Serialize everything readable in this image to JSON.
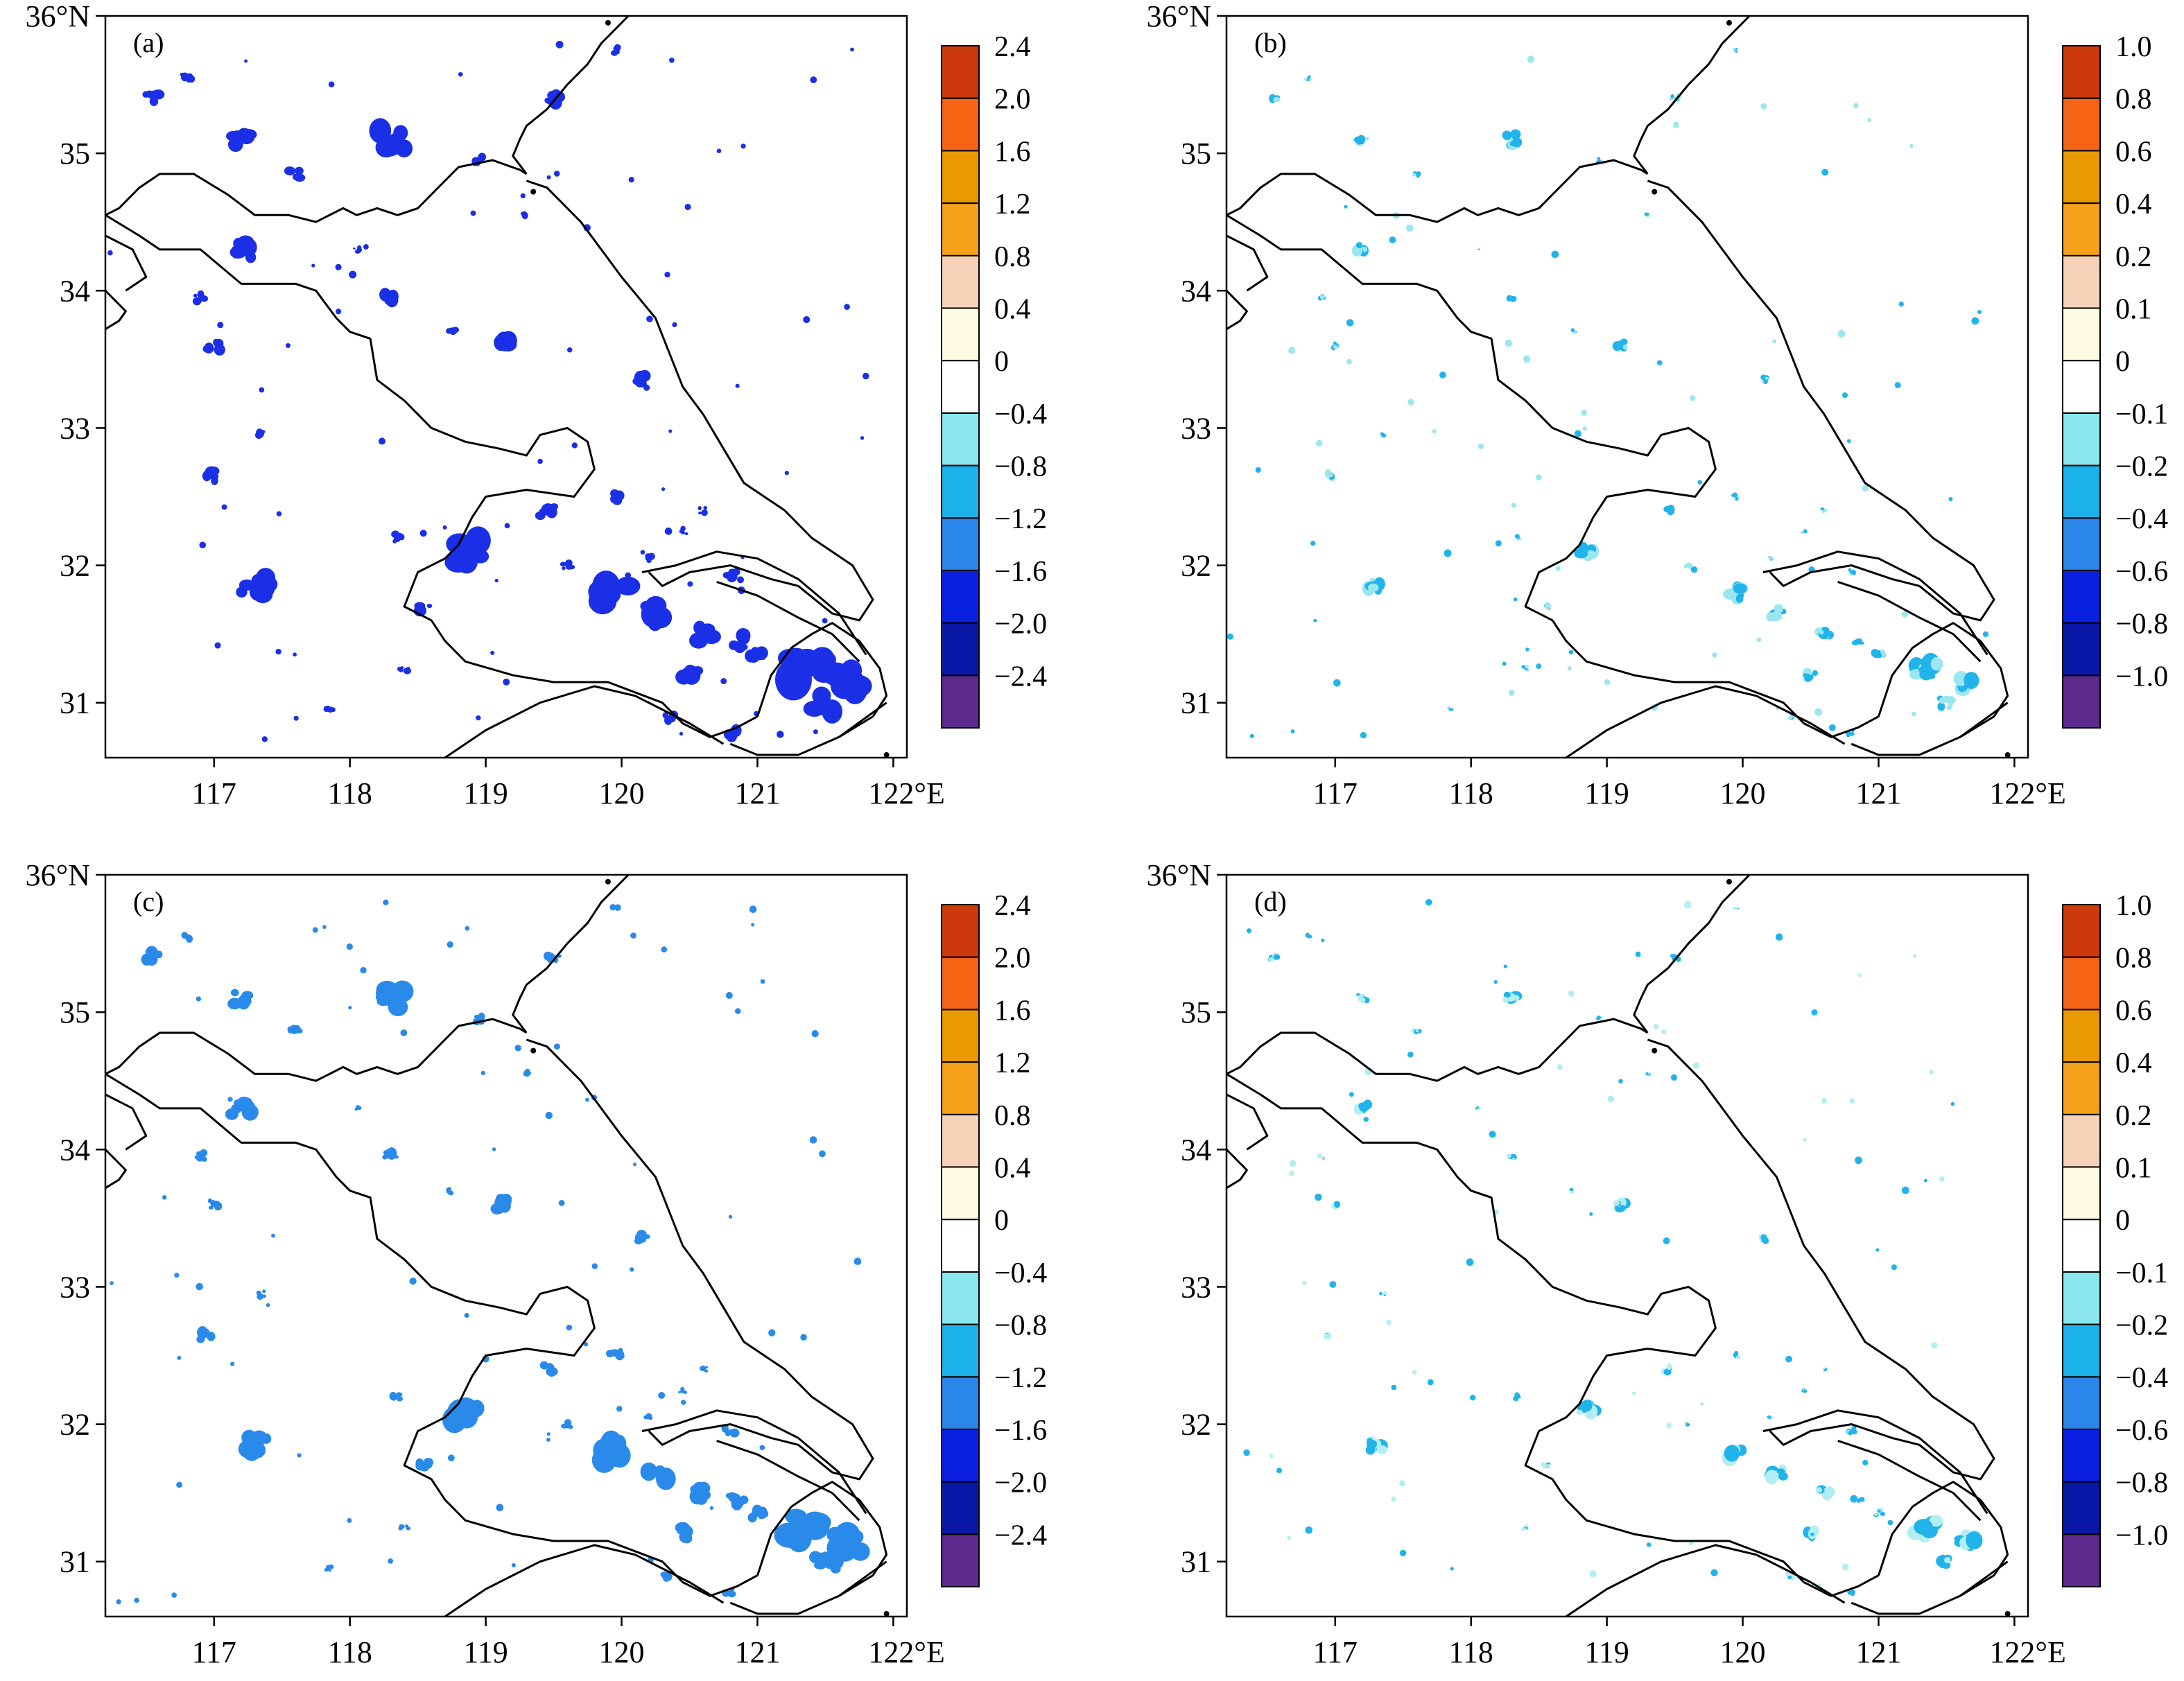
{
  "map_data": {
    "lat_ticks": [
      "36°N",
      "35",
      "34",
      "33",
      "32",
      "31"
    ],
    "lon_ticks": [
      "117",
      "118",
      "119",
      "120",
      "121",
      "122°E"
    ],
    "lat_range": [
      30.6,
      36.0
    ],
    "lon_range": [
      116.2,
      122.1
    ],
    "boundary_color": "#000000",
    "panels": [
      {
        "label": "(a)",
        "colorbar": {
          "colors": [
            "#5b2a8c",
            "#0a18a8",
            "#0a20e0",
            "#2a86e8",
            "#1ab2e8",
            "#8ae6ef",
            "#ffffff",
            "#fffbe2",
            "#f6d3b8",
            "#f5a21a",
            "#e89a00",
            "#f56315",
            "#cc3a0c"
          ],
          "labels": [
            "-2.4",
            "-2.0",
            "-1.6",
            "-1.2",
            "-0.8",
            "-0.4",
            "0",
            "0.4",
            "0.8",
            "1.2",
            "1.6",
            "2.0",
            "2.4"
          ]
        },
        "blob_color": "#1a2fe6",
        "blob_color_light": "#1a2fe6",
        "intensity": "strong"
      },
      {
        "label": "(b)",
        "colorbar": {
          "colors": [
            "#5b2a8c",
            "#0a18a8",
            "#0a20e0",
            "#2a86e8",
            "#1ab2e8",
            "#8ae6ef",
            "#ffffff",
            "#fffbe2",
            "#f6d3b8",
            "#f5a21a",
            "#e89a00",
            "#f56315",
            "#cc3a0c"
          ],
          "labels": [
            "-1.0",
            "-0.8",
            "-0.6",
            "-0.4",
            "-0.2",
            "-0.1",
            "0",
            "0.1",
            "0.2",
            "0.4",
            "0.6",
            "0.8",
            "1.0"
          ]
        },
        "blob_color": "#21b4ea",
        "blob_color_light": "#9be7f0",
        "intensity": "weak"
      },
      {
        "label": "(c)",
        "colorbar": {
          "colors": [
            "#5b2a8c",
            "#0a18a8",
            "#0a20e0",
            "#2a86e8",
            "#1ab2e8",
            "#8ae6ef",
            "#ffffff",
            "#fffbe2",
            "#f6d3b8",
            "#f5a21a",
            "#e89a00",
            "#f56315",
            "#cc3a0c"
          ],
          "labels": [
            "-2.4",
            "-2.0",
            "-1.6",
            "-1.2",
            "-0.8",
            "-0.4",
            "0",
            "0.4",
            "0.8",
            "1.2",
            "1.6",
            "2.0",
            "2.4"
          ]
        },
        "blob_color": "#2a8ae9",
        "blob_color_light": "#1ab2e8",
        "intensity": "medium"
      },
      {
        "label": "(d)",
        "colorbar": {
          "colors": [
            "#5b2a8c",
            "#0a18a8",
            "#0a20e0",
            "#2a86e8",
            "#1ab2e8",
            "#8ae6ef",
            "#ffffff",
            "#fffbe2",
            "#f6d3b8",
            "#f5a21a",
            "#e89a00",
            "#f56315",
            "#cc3a0c"
          ],
          "labels": [
            "-1.0",
            "-0.8",
            "-0.6",
            "-0.4",
            "-0.2",
            "-0.1",
            "0",
            "0.1",
            "0.2",
            "0.4",
            "0.6",
            "0.8",
            "1.0"
          ]
        },
        "blob_color": "#21b4ea",
        "blob_color_light": "#b3eef3",
        "intensity": "weak"
      }
    ]
  }
}
